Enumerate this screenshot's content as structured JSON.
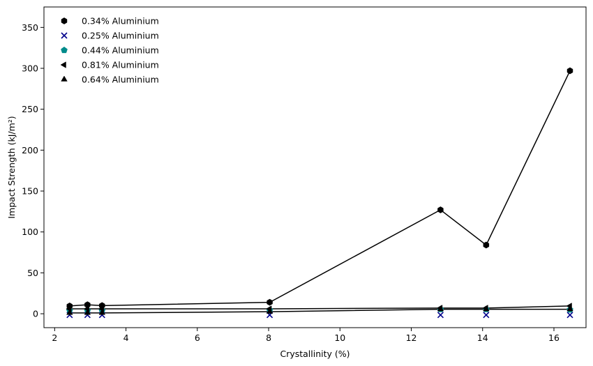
{
  "chart_data": {
    "type": "scatter",
    "title": "",
    "xlabel": "Crystallinity (%)",
    "ylabel": "Impact Strength (kJ/m²)",
    "xlim": [
      1.7,
      16.9
    ],
    "ylim": [
      -17,
      375
    ],
    "xticks": [
      2,
      4,
      6,
      8,
      10,
      12,
      14,
      16
    ],
    "yticks": [
      0,
      50,
      100,
      150,
      200,
      250,
      300,
      350
    ],
    "grid": false,
    "legend_position": "upper-left",
    "x": [
      2.42,
      2.92,
      3.33,
      8.03,
      12.82,
      14.1,
      16.45
    ],
    "series": [
      {
        "name": "0.34% Aluminium",
        "marker": "hexagon",
        "color": "#000000",
        "line": true,
        "values": [
          9.5,
          11.0,
          10.0,
          14.0,
          127.0,
          84.0,
          297.0
        ]
      },
      {
        "name": "0.25% Aluminium",
        "marker": "x",
        "color": "#00008b",
        "line": false,
        "values": [
          -1.5,
          -1.5,
          -1.5,
          -1.5,
          -1.5,
          -1.5,
          -1.5
        ]
      },
      {
        "name": "0.44% Aluminium",
        "marker": "pentagon",
        "color": "#008b8b",
        "line": false,
        "values": [
          4.0,
          4.0,
          4.0,
          4.5,
          5.5,
          5.5,
          5.0
        ]
      },
      {
        "name": "0.81% Aluminium",
        "marker": "triangle-left",
        "color": "#000000",
        "line": true,
        "values": [
          6.0,
          6.0,
          6.0,
          6.0,
          7.0,
          7.0,
          9.5
        ]
      },
      {
        "name": "0.64% Aluminium",
        "marker": "triangle-up",
        "color": "#000000",
        "line": true,
        "values": [
          1.0,
          1.0,
          1.0,
          2.5,
          5.5,
          5.5,
          5.5
        ]
      }
    ]
  }
}
